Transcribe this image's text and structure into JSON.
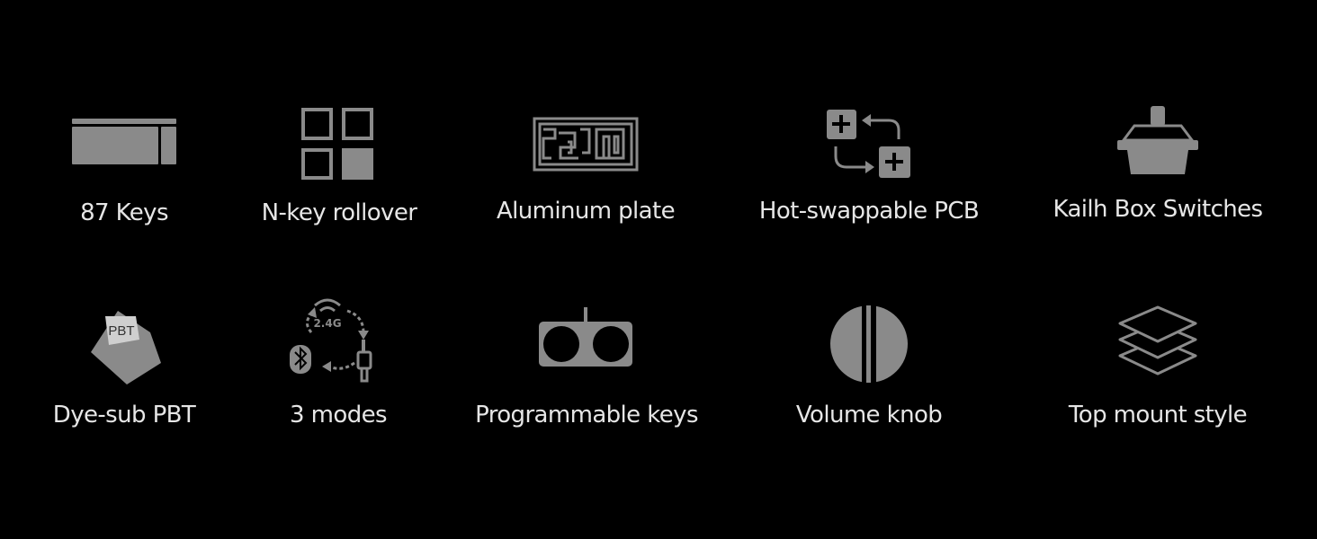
{
  "features": [
    {
      "label": "87 Keys",
      "icon": "keyboard-icon"
    },
    {
      "label": "N-key rollover",
      "icon": "grid-squares-icon"
    },
    {
      "label": "Aluminum plate",
      "icon": "plate-icon"
    },
    {
      "label": "Hot-swappable PCB",
      "icon": "swap-icon"
    },
    {
      "label": "Kailh Box Switches",
      "icon": "switch-icon"
    },
    {
      "label": "Dye-sub PBT",
      "icon": "keycap-icon"
    },
    {
      "label": "3 modes",
      "icon": "connection-modes-icon"
    },
    {
      "label": "Programmable keys",
      "icon": "macro-icon"
    },
    {
      "label": "Volume knob",
      "icon": "knob-icon"
    },
    {
      "label": "Top mount style",
      "icon": "layers-icon"
    }
  ],
  "keycap_text": "PBT",
  "wireless_text": "2.4G",
  "colors": {
    "background": "#000000",
    "icon": "#8a8a8a",
    "text": "#e6e6e6"
  }
}
